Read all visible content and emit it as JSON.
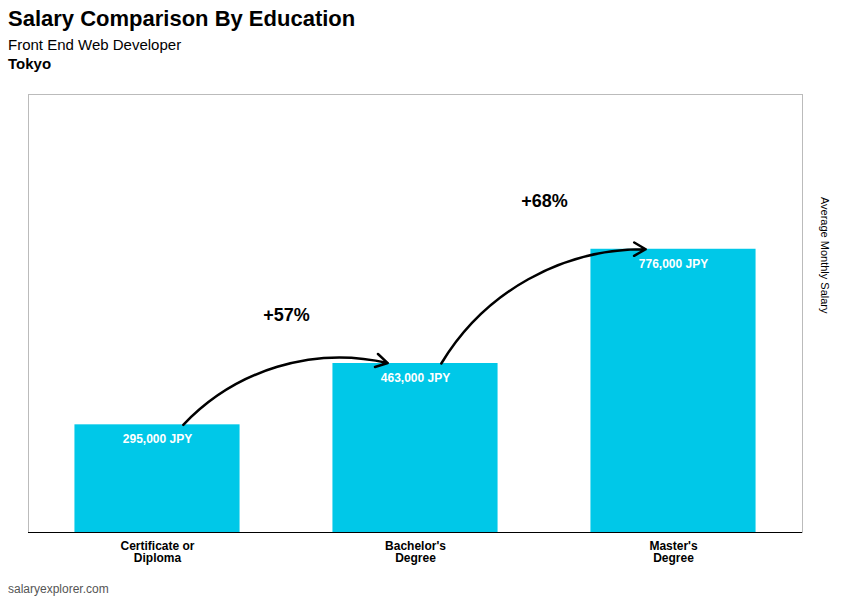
{
  "chart_data": {
    "type": "bar",
    "title": "Salary Comparison By Education",
    "subtitle": [
      "Front End Web Developer",
      "Tokyo"
    ],
    "caption": "salaryexplorer.com",
    "ylabel": "Average Monthly Salary",
    "categories": [
      "Certificate or\nDiploma",
      "Bachelor's\nDegree",
      "Master's\nDegree"
    ],
    "values": [
      295000,
      463000,
      776000
    ],
    "value_labels": [
      "295,000 JPY",
      "463,000 JPY",
      "776,000 JPY"
    ],
    "data_labels": true,
    "annotations": [
      "+57%",
      "+68%"
    ],
    "color": "#00C8E8",
    "ylim": [
      0,
      1200000
    ],
    "tick_labels": "x",
    "grid": false
  }
}
